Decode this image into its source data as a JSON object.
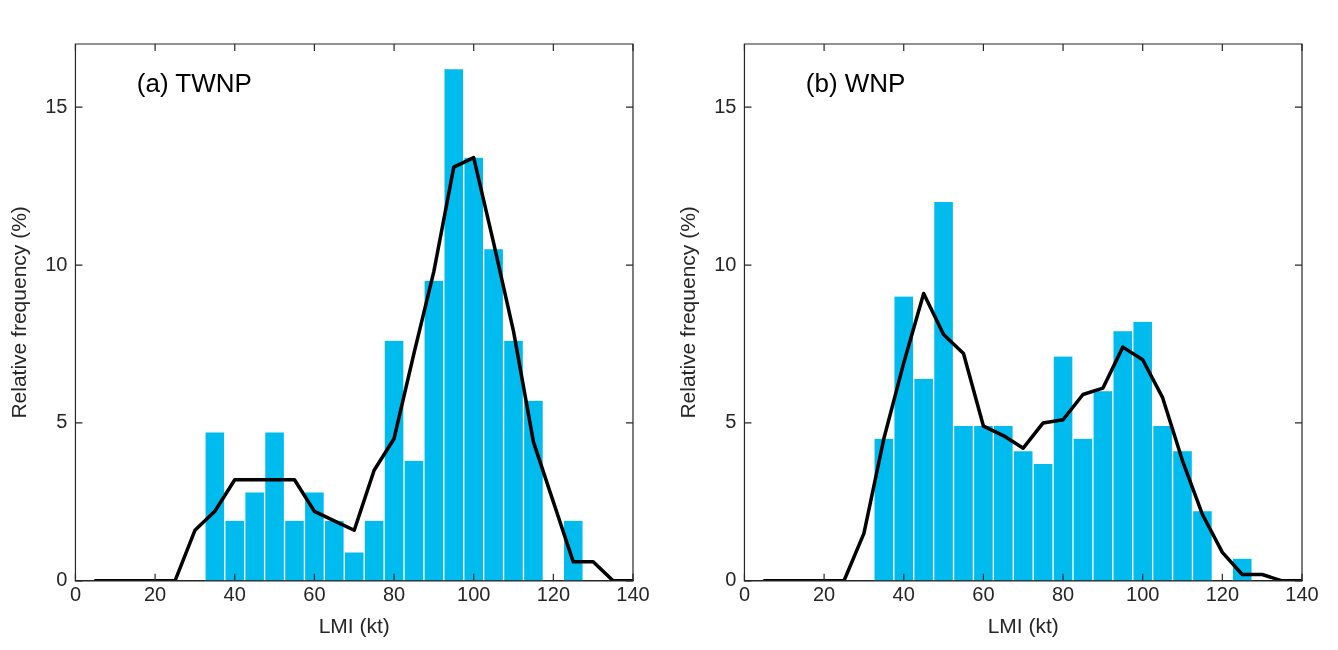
{
  "chart_data": [
    {
      "type": "histogram",
      "title": "(a) TWNP",
      "xlabel": "LMI (kt)",
      "ylabel": "Relative frequency (%)",
      "xlim": [
        0,
        140
      ],
      "xticks": [
        0,
        20,
        40,
        60,
        80,
        100,
        120,
        140
      ],
      "ylim": [
        0,
        17
      ],
      "yticks": [
        0,
        5,
        10,
        15
      ],
      "grid": false,
      "legend": false,
      "series": [
        {
          "color": "#00bbee",
          "bins": [
            32.5,
            37.5,
            42.5,
            47.5,
            52.5,
            57.5,
            62.5,
            67.5,
            72.5,
            77.5,
            82.5,
            87.5,
            92.5,
            97.5,
            102.5,
            107.5,
            112.5,
            117.5,
            122.5,
            127.5
          ],
          "values": [
            4.7,
            1.9,
            2.8,
            4.7,
            1.9,
            2.8,
            1.9,
            0.9,
            1.9,
            7.6,
            3.8,
            9.5,
            16.2,
            13.4,
            10.5,
            7.6,
            5.7,
            0,
            1.9
          ]
        },
        {
          "type": "line",
          "color": "#000000",
          "x": [
            5,
            10,
            15,
            20,
            25,
            30,
            35,
            40,
            45,
            50,
            55,
            60,
            65,
            70,
            75,
            80,
            85,
            90,
            95,
            100,
            105,
            110,
            115,
            120,
            125,
            130,
            135,
            140
          ],
          "values": [
            0,
            0,
            0,
            0,
            0,
            1.6,
            2.2,
            3.2,
            3.2,
            3.2,
            3.2,
            2.2,
            1.9,
            1.6,
            3.5,
            4.5,
            7.2,
            9.8,
            13.1,
            13.4,
            10.7,
            7.9,
            4.4,
            2.5,
            0.6,
            0.6,
            0,
            0
          ]
        }
      ]
    },
    {
      "type": "histogram",
      "title": "(b) WNP",
      "xlabel": "LMI (kt)",
      "ylabel": "Relative frequency (%)",
      "xlim": [
        0,
        140
      ],
      "xticks": [
        0,
        20,
        40,
        60,
        80,
        100,
        120,
        140
      ],
      "ylim": [
        0,
        17
      ],
      "yticks": [
        0,
        5,
        10,
        15
      ],
      "grid": false,
      "legend": false,
      "series": [
        {
          "color": "#00bbee",
          "bins": [
            32.5,
            37.5,
            42.5,
            47.5,
            52.5,
            57.5,
            62.5,
            67.5,
            72.5,
            77.5,
            82.5,
            87.5,
            92.5,
            97.5,
            102.5,
            107.5,
            112.5,
            117.5,
            122.5,
            127.5
          ],
          "values": [
            4.5,
            9.0,
            6.4,
            12.0,
            4.9,
            4.9,
            4.9,
            4.1,
            3.7,
            7.1,
            4.5,
            6.0,
            7.9,
            8.2,
            4.9,
            4.1,
            2.2,
            0,
            0.7
          ]
        },
        {
          "type": "line",
          "color": "#000000",
          "x": [
            5,
            10,
            15,
            20,
            25,
            30,
            35,
            40,
            45,
            50,
            55,
            60,
            65,
            70,
            75,
            80,
            85,
            90,
            95,
            100,
            105,
            110,
            115,
            120,
            125,
            130,
            135,
            140
          ],
          "values": [
            0,
            0,
            0,
            0,
            0,
            1.5,
            4.5,
            6.9,
            9.1,
            7.8,
            7.2,
            4.9,
            4.6,
            4.2,
            5.0,
            5.1,
            5.9,
            6.1,
            7.4,
            7.0,
            5.8,
            3.8,
            2.1,
            0.9,
            0.2,
            0.2,
            0,
            0
          ]
        }
      ]
    }
  ]
}
